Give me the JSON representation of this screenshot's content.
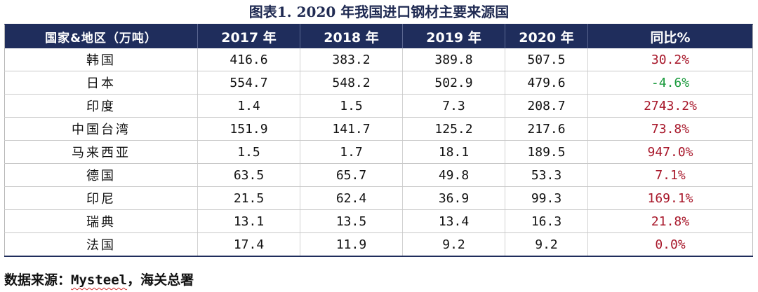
{
  "title": "图表1.   2020 年我国进口钢材主要来源国",
  "table": {
    "headers": [
      "国家&地区（万吨）",
      "2017 年",
      "2018 年",
      "2019 年",
      "2020 年",
      "同比%"
    ],
    "rows": [
      {
        "name": "韩国",
        "v2017": "416.6",
        "v2018": "383.2",
        "v2019": "389.8",
        "v2020": "507.5",
        "yoy": "30.2%"
      },
      {
        "name": "日本",
        "v2017": "554.7",
        "v2018": "548.2",
        "v2019": "502.9",
        "v2020": "479.6",
        "yoy": "-4.6%"
      },
      {
        "name": "印度",
        "v2017": "1.4",
        "v2018": "1.5",
        "v2019": "7.3",
        "v2020": "208.7",
        "yoy": "2743.2%"
      },
      {
        "name": "中国台湾",
        "v2017": "151.9",
        "v2018": "141.7",
        "v2019": "125.2",
        "v2020": "217.6",
        "yoy": "73.8%"
      },
      {
        "name": "马来西亚",
        "v2017": "1.5",
        "v2018": "1.7",
        "v2019": "18.1",
        "v2020": "189.5",
        "yoy": "947.0%"
      },
      {
        "name": "德国",
        "v2017": "63.5",
        "v2018": "65.7",
        "v2019": "49.8",
        "v2020": "53.3",
        "yoy": "7.1%"
      },
      {
        "name": "印尼",
        "v2017": "21.5",
        "v2018": "62.4",
        "v2019": "36.9",
        "v2020": "99.3",
        "yoy": "169.1%"
      },
      {
        "name": "瑞典",
        "v2017": "13.1",
        "v2018": "13.5",
        "v2019": "13.4",
        "v2020": "16.3",
        "yoy": "21.8%"
      },
      {
        "name": "法国",
        "v2017": "17.4",
        "v2018": "11.9",
        "v2019": "9.2",
        "v2020": "9.2",
        "yoy": "0.0%"
      }
    ]
  },
  "source": {
    "label": "数据来源：",
    "mysteel": "Mysteel",
    "rest": "，海关总署"
  },
  "colors": {
    "header_bg": "#1f2d5c",
    "positive": "#a8172a",
    "negative": "#1a9a3c"
  }
}
